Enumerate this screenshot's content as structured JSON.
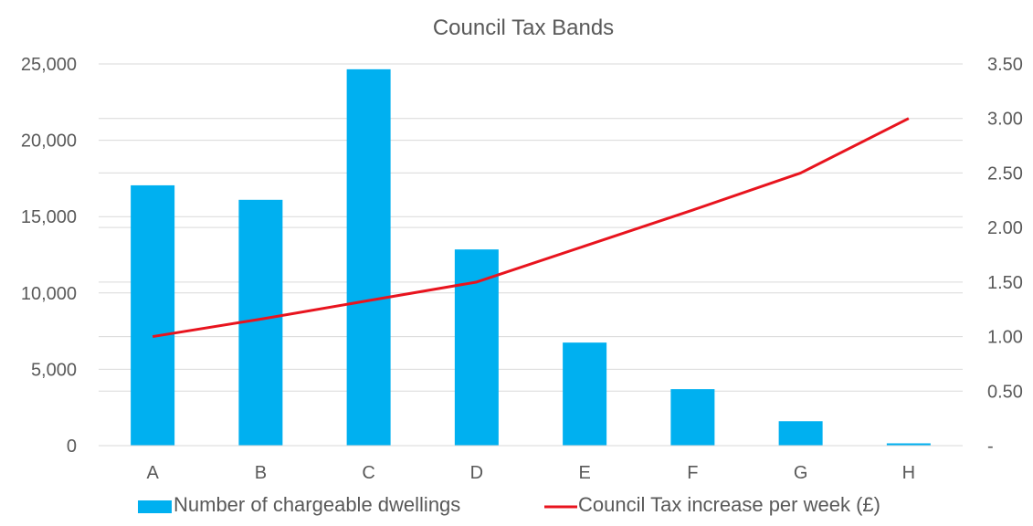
{
  "chart_data": {
    "type": "bar",
    "title": "Council Tax Bands",
    "categories": [
      "A",
      "B",
      "C",
      "D",
      "E",
      "F",
      "G",
      "H"
    ],
    "series": [
      {
        "name": "Number of chargeable dwellings",
        "type": "bar",
        "axis": "left",
        "color": "#00B0F0",
        "values": [
          17050,
          16100,
          24650,
          12850,
          6750,
          3700,
          1600,
          150
        ]
      },
      {
        "name": "Council Tax increase per week (£)",
        "type": "line",
        "axis": "right",
        "color": "#E8141E",
        "values": [
          1.0,
          1.16,
          1.33,
          1.5,
          1.83,
          2.16,
          2.5,
          3.0
        ]
      }
    ],
    "left_axis": {
      "ylim": [
        0,
        25000
      ],
      "ticks": [
        0,
        5000,
        10000,
        15000,
        20000,
        25000
      ],
      "tick_labels": [
        "0",
        "5,000",
        "10,000",
        "15,000",
        "20,000",
        "25,000"
      ]
    },
    "right_axis": {
      "ylim": [
        0,
        3.5
      ],
      "ticks": [
        0,
        0.5,
        1.0,
        1.5,
        2.0,
        2.5,
        3.0,
        3.5
      ],
      "tick_labels": [
        "-",
        "0.50",
        "1.00",
        "1.50",
        "2.00",
        "2.50",
        "3.00",
        "3.50"
      ]
    },
    "grid": true,
    "gridline_color": "#D9D9D9",
    "legend_position": "bottom"
  }
}
